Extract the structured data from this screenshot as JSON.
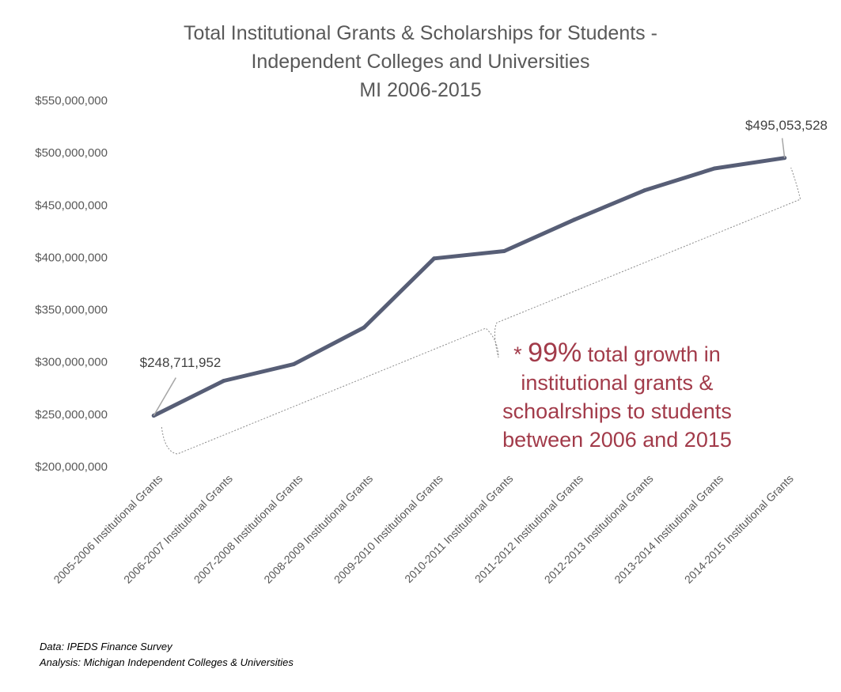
{
  "title": {
    "line1": "Total Institutional Grants & Scholarships for Students -",
    "line2": "Independent  Colleges and Universities",
    "line3": "MI 2006-2015"
  },
  "annotation": {
    "prefix": "* ",
    "highlight": "99%",
    "text": " total growth in institutional grants & schoalrships to students between 2006 and 2015"
  },
  "source": {
    "data": "Data: IPEDS Finance Survey",
    "analysis": "Analysis: Michigan Independent Colleges & Universities"
  },
  "colors": {
    "line": "#575e76",
    "annotation": "#a23b4a",
    "text": "#595959"
  },
  "chart_data": {
    "type": "line",
    "categories": [
      "2005-2006 Institutional Grants",
      "2006-2007 Institutional Grants",
      "2007-2008 Institutional Grants",
      "2008-2009 Institutional Grants",
      "2009-2010 Institutional Grants",
      "2010-2011 Institutional Grants",
      "2011-2012 Institutional Grants",
      "2012-2013 Institutional Grants",
      "2013-2014 Institutional Grants",
      "2014-2015 Institutional Grants"
    ],
    "values": [
      248711952,
      282000000,
      298000000,
      333000000,
      399000000,
      406000000,
      436000000,
      464000000,
      485000000,
      495053528
    ],
    "data_labels": {
      "first": "$248,711,952",
      "last": "$495,053,528"
    },
    "ylim": [
      200000000,
      550000000
    ],
    "yticks": [
      200000000,
      250000000,
      300000000,
      350000000,
      400000000,
      450000000,
      500000000,
      550000000
    ],
    "ytick_labels": [
      "$200,000,000",
      "$250,000,000",
      "$300,000,000",
      "$350,000,000",
      "$400,000,000",
      "$450,000,000",
      "$500,000,000",
      "$550,000,000"
    ],
    "grid": false,
    "legend": "none"
  }
}
